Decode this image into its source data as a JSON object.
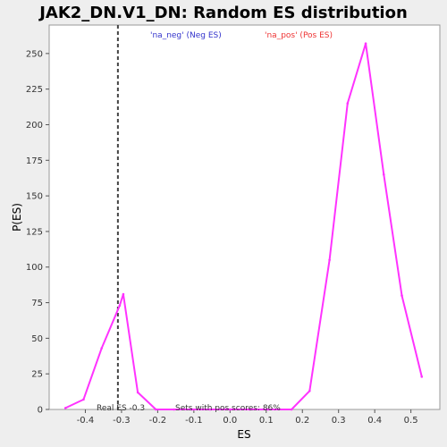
{
  "chart_data": {
    "type": "line",
    "title": "JAK2_DN.V1_DN: Random ES distribution",
    "xlabel": "ES",
    "ylabel": "P(ES)",
    "xlim": [
      -0.5,
      0.58
    ],
    "ylim": [
      0,
      270
    ],
    "x_ticks": [
      -0.4,
      -0.3,
      -0.2,
      -0.1,
      0.0,
      0.1,
      0.2,
      0.3,
      0.4,
      0.5
    ],
    "x_tick_labels": [
      "-0.4",
      "-0.3",
      "-0.2",
      "-0.1",
      "0.0",
      "0.1",
      "0.2",
      "0.3",
      "0.4",
      "0.5"
    ],
    "y_ticks": [
      0,
      25,
      50,
      75,
      100,
      125,
      150,
      175,
      200,
      225,
      250
    ],
    "y_tick_labels": [
      "0",
      "25",
      "50",
      "75",
      "100",
      "125",
      "150",
      "175",
      "200",
      "225",
      "250"
    ],
    "series": [
      {
        "name": "Random ES distribution",
        "color": "#ff33ff",
        "x": [
          -0.455,
          -0.405,
          -0.355,
          -0.305,
          -0.295,
          -0.255,
          -0.205,
          -0.155,
          -0.105,
          -0.055,
          0.0,
          0.055,
          0.105,
          0.17,
          0.22,
          0.275,
          0.325,
          0.375,
          0.425,
          0.475,
          0.53
        ],
        "y": [
          1,
          7,
          43,
          73,
          81,
          12,
          0,
          0,
          0,
          0,
          0,
          0,
          0,
          0,
          13,
          105,
          215,
          257,
          165,
          80,
          23
        ]
      }
    ],
    "vline": {
      "x": -0.31,
      "color": "#444444",
      "style": "dashed"
    },
    "legend": [
      {
        "label": "'na_neg' (Neg ES)",
        "color": "#3333cc"
      },
      {
        "label": "'na_pos' (Pos ES)",
        "color": "#ee3333"
      }
    ],
    "annotations": {
      "real_es": "Real ES -0.3",
      "pos_scores": "Sets with pos scores: 86%"
    }
  }
}
